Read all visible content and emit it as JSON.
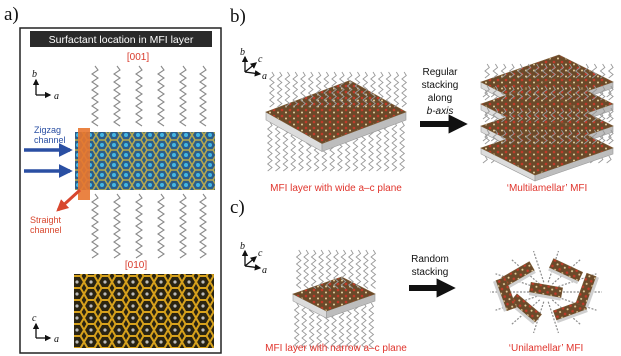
{
  "panels": {
    "a": {
      "label": "a)",
      "title": "Surfactant location in MFI layer",
      "dir_top": "[001]",
      "dir_bottom": "[010]",
      "axis_top": {
        "up": "b",
        "right": "a"
      },
      "axis_bottom": {
        "up": "c",
        "right": "a"
      },
      "zigzag": [
        "Zigzag",
        "channel"
      ],
      "straight": [
        "Straight",
        "channel"
      ]
    },
    "b": {
      "label": "b)",
      "axes": {
        "up": "b",
        "diag": "c",
        "right": "a"
      },
      "arrow_text": [
        "Regular",
        "stacking",
        "along",
        "b-axis"
      ],
      "caption_left": "MFI layer with wide a–c plane",
      "caption_right": "‘Multilamellar’ MFI"
    },
    "c": {
      "label": "c)",
      "axes": {
        "up": "b",
        "diag": "c",
        "right": "a"
      },
      "arrow_text": [
        "Random",
        "stacking"
      ],
      "caption_left": "MFI layer with narrow a–c plane",
      "caption_right": "‘Unilamellar’ MFI"
    }
  },
  "colors": {
    "caption_red": "#e0342c",
    "dir_red": "#d83a2b",
    "zigzag_blue": "#2a4fa3",
    "straight_red": "#d8472e",
    "framework_gold": "#d6a11c",
    "slab_grey": "#c9c9c9"
  }
}
